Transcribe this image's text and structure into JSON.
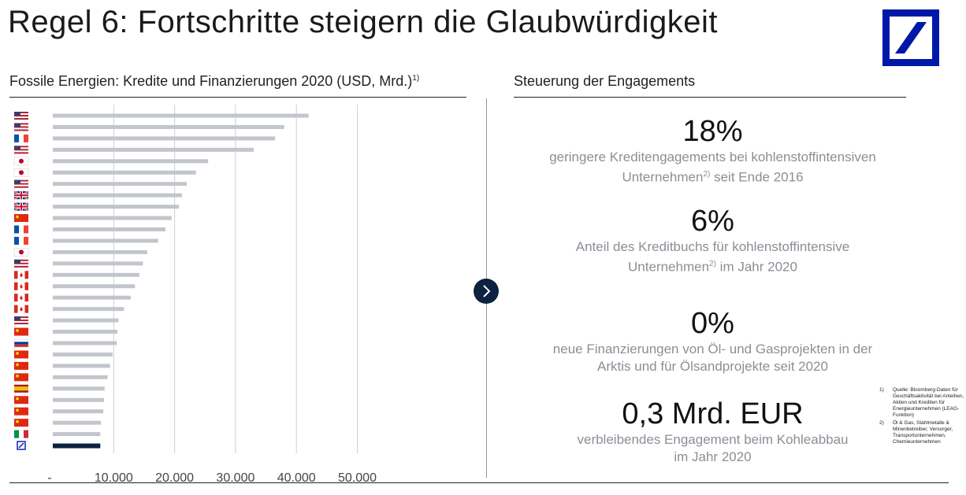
{
  "title": "Regel 6: Fortschritte steigern die Glaubwürdigkeit",
  "colors": {
    "brand_blue": "#0018a8",
    "bar_grey": "#c2c6cc",
    "bar_highlight": "#0b2240",
    "grid": "#cfcfcf",
    "stat_desc": "#8a8f96"
  },
  "left_section": {
    "title": "Fossile Energien: Kredite und Finanzierungen 2020 (USD, Mrd.)",
    "title_sup": "1)"
  },
  "right_section": {
    "title": "Steuerung der Engagements"
  },
  "stats": [
    {
      "value": "18%",
      "desc_line1": "geringere Kreditengagements bei kohlenstoffintensiven",
      "desc_line2": "Unternehmen",
      "desc_sup": "2)",
      "desc_line2_rest": " seit Ende 2016"
    },
    {
      "value": "6%",
      "desc_line1": "Anteil des Kreditbuchs für kohlenstoffintensive",
      "desc_line2": "Unternehmen",
      "desc_sup": "2)",
      "desc_line2_rest": " im Jahr 2020"
    },
    {
      "value": "0%",
      "desc_line1": "neue Finanzierungen von Öl- und Gasprojekten in der",
      "desc_line2": "Arktis und für Ölsandprojekte seit 2020",
      "desc_sup": "",
      "desc_line2_rest": ""
    },
    {
      "value": "0,3 Mrd. EUR",
      "desc_line1": "verbleibendes Engagement beim Kohleabbau",
      "desc_line2": "im Jahr 2020",
      "desc_sup": "",
      "desc_line2_rest": ""
    }
  ],
  "footnotes": [
    {
      "num": "1)",
      "text": "Quelle: Bloomberg-Daten für Geschäftsaktivität bei Anleihen, Aktien und Krediten für Energieunternehmen (LEAG-Funktion)"
    },
    {
      "num": "2)",
      "text": "Öl & Gas, Stahlmetalle & Minenbetreiber, Versorger, Transportunternehmen, Chemieunternehmen"
    }
  ],
  "chart_data": {
    "type": "bar",
    "orientation": "horizontal",
    "xlim": [
      0,
      50000
    ],
    "x_ticks": [
      "-",
      "10.000",
      "20.000",
      "30.000",
      "40.000",
      "50.000"
    ],
    "grid": true,
    "categories": [
      "US",
      "US",
      "FR",
      "US",
      "JP",
      "JP",
      "US",
      "GB",
      "GB",
      "CN",
      "FR",
      "FR",
      "JP",
      "US",
      "CA",
      "CA",
      "CA",
      "CA",
      "US",
      "CN",
      "RU",
      "CN",
      "CN",
      "CN",
      "ES",
      "CN",
      "CN",
      "CN",
      "IT",
      "Deutsche Bank"
    ],
    "category_icons": [
      "flag-us",
      "flag-us",
      "flag-fr",
      "flag-us",
      "flag-jp",
      "flag-jp",
      "flag-us",
      "flag-gb",
      "flag-gb",
      "flag-cn",
      "flag-fr",
      "flag-fr",
      "flag-jp",
      "flag-us",
      "flag-ca",
      "flag-ca",
      "flag-ca",
      "flag-ca",
      "flag-us",
      "flag-cn",
      "flag-ru",
      "flag-cn",
      "flag-cn",
      "flag-cn",
      "flag-es",
      "flag-cn",
      "flag-cn",
      "flag-cn",
      "flag-it",
      "db-logo"
    ],
    "values": [
      42000,
      38000,
      36500,
      33000,
      25500,
      23500,
      22000,
      21200,
      20700,
      19500,
      18500,
      17300,
      15500,
      14800,
      14200,
      13500,
      12800,
      11700,
      10800,
      10600,
      10500,
      9800,
      9400,
      9000,
      8500,
      8400,
      8300,
      7900,
      7800,
      7800
    ],
    "highlight_index": 29
  }
}
